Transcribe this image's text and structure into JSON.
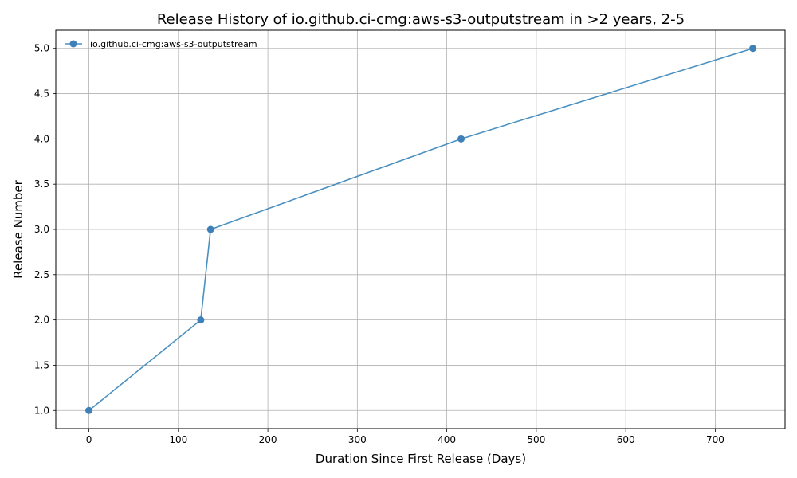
{
  "chart_data": {
    "type": "line",
    "title": "Release History of io.github.ci-cmg:aws-s3-outputstream in >2 years, 2-5",
    "xlabel": "Duration Since First Release (Days)",
    "ylabel": "Release Number",
    "xlim": [
      -37,
      778
    ],
    "ylim": [
      0.8,
      5.2
    ],
    "xticks": [
      0,
      100,
      200,
      300,
      400,
      500,
      600,
      700
    ],
    "yticks": [
      1.0,
      1.5,
      2.0,
      2.5,
      3.0,
      3.5,
      4.0,
      4.5,
      5.0
    ],
    "grid": true,
    "legend": "top-left",
    "color": "#4a90c0",
    "series": [
      {
        "name": "io.github.ci-cmg:aws-s3-outputstream",
        "x": [
          0,
          125,
          136,
          416,
          742
        ],
        "y": [
          1,
          2,
          3,
          4,
          5
        ]
      }
    ]
  }
}
